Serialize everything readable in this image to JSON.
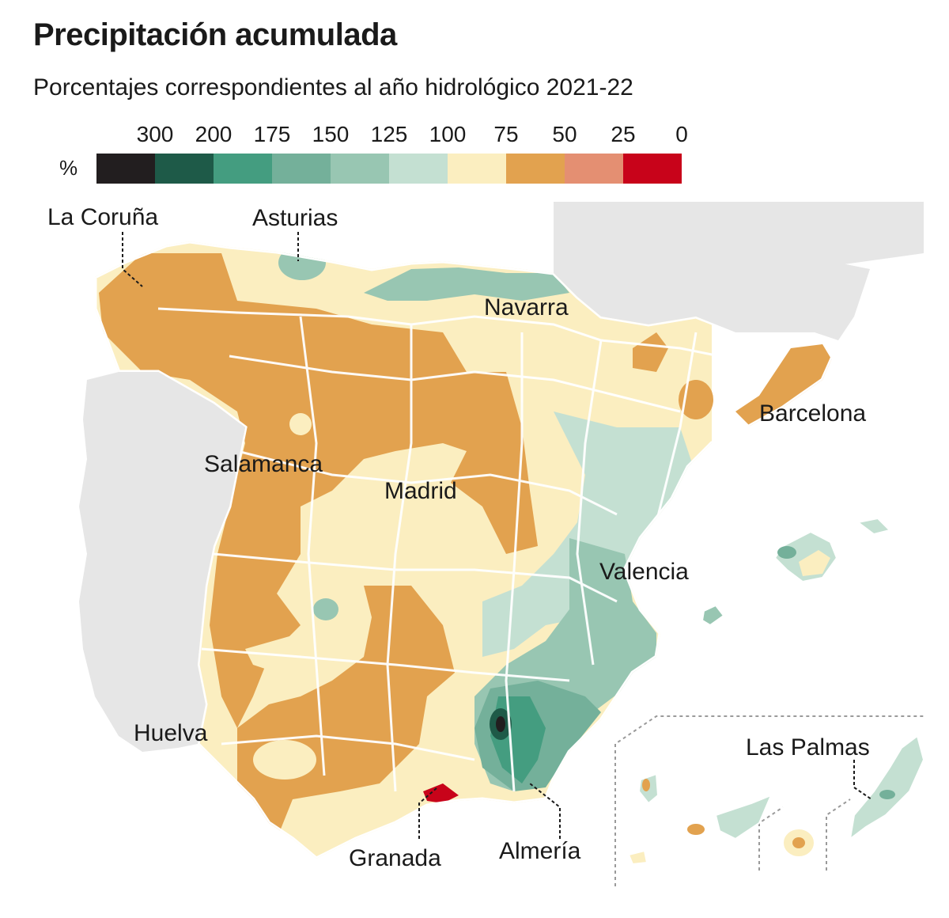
{
  "title": "Precipitación acumulada",
  "subtitle": "Porcentajes correspondientes al año hidrológico 2021-22",
  "legend": {
    "unit": "%",
    "ticks": [
      "300",
      "200",
      "175",
      "150",
      "125",
      "100",
      "75",
      "50",
      "25",
      "0"
    ],
    "colors": [
      "#221e1f",
      "#1e5a48",
      "#449d80",
      "#74b09a",
      "#98c6b2",
      "#c4e0d2",
      "#fbeec0",
      "#e2a24f",
      "#e48f72",
      "#c8031a"
    ]
  },
  "labels": {
    "coruna": "La Coruña",
    "asturias": "Asturias",
    "navarra": "Navarra",
    "barcelona": "Barcelona",
    "salamanca": "Salamanca",
    "madrid": "Madrid",
    "valencia": "Valencia",
    "huelva": "Huelva",
    "las_palmas": "Las Palmas",
    "granada": "Granada",
    "almeria": "Almería"
  }
}
